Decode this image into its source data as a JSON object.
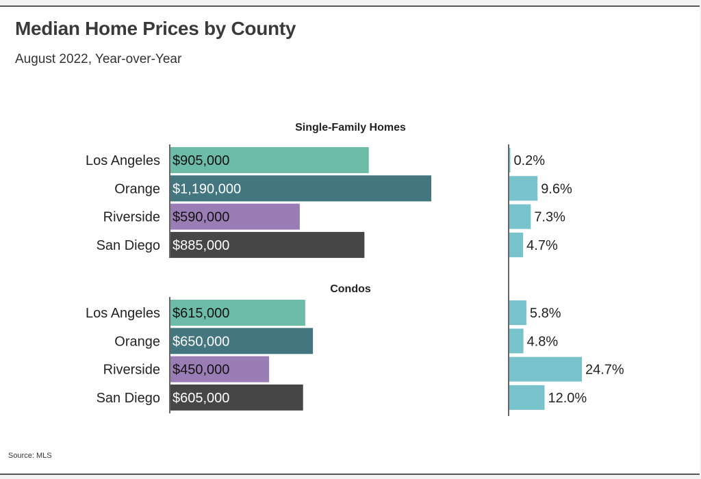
{
  "title": "Median Home Prices by County",
  "subtitle": "August 2022, Year-over-Year",
  "source": "Source:  MLS",
  "chart_data": [
    {
      "type": "bar",
      "orientation": "horizontal",
      "title": "Single-Family Homes",
      "categories": [
        "Los Angeles",
        "Orange",
        "Riverside",
        "San Diego"
      ],
      "values": [
        905000,
        1190000,
        590000,
        885000
      ],
      "value_labels": [
        "$905,000",
        "$1,190,000",
        "$590,000",
        "$885,000"
      ],
      "colors": [
        "#6cbca8",
        "#43767f",
        "#9b7db6",
        "#464646"
      ],
      "label_colors": [
        "#111111",
        "#ffffff",
        "#111111",
        "#ffffff"
      ],
      "grid": false
    },
    {
      "type": "bar",
      "orientation": "horizontal",
      "categories": [
        "Los Angeles",
        "Orange",
        "Riverside",
        "San Diego"
      ],
      "values": [
        0.2,
        9.6,
        7.3,
        4.7
      ],
      "value_labels": [
        "0.2%",
        "9.6%",
        "7.3%",
        "4.7%"
      ],
      "color": "#78c2cc",
      "grid": false
    },
    {
      "type": "bar",
      "orientation": "horizontal",
      "title": "Condos",
      "categories": [
        "Los Angeles",
        "Orange",
        "Riverside",
        "San Diego"
      ],
      "values": [
        615000,
        650000,
        450000,
        605000
      ],
      "value_labels": [
        "$615,000",
        "$650,000",
        "$450,000",
        "$605,000"
      ],
      "colors": [
        "#6cbca8",
        "#43767f",
        "#9b7db6",
        "#464646"
      ],
      "label_colors": [
        "#111111",
        "#ffffff",
        "#111111",
        "#ffffff"
      ],
      "grid": false
    },
    {
      "type": "bar",
      "orientation": "horizontal",
      "categories": [
        "Los Angeles",
        "Orange",
        "Riverside",
        "San Diego"
      ],
      "values": [
        5.8,
        4.8,
        24.7,
        12.0
      ],
      "value_labels": [
        "5.8%",
        "4.8%",
        "24.7%",
        "12.0%"
      ],
      "color": "#78c2cc",
      "grid": false
    }
  ]
}
